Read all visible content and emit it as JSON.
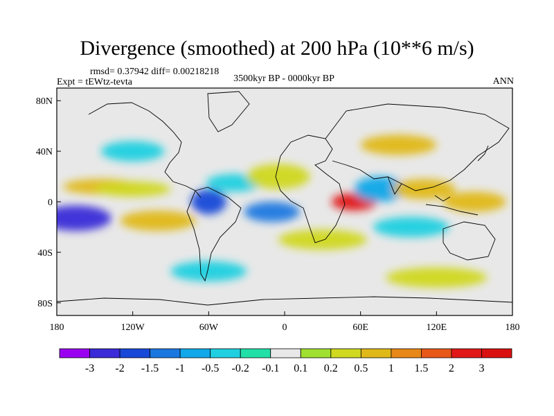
{
  "title": "Divergence (smoothed) at 200 hPa (10**6 m/s)",
  "stats": "rmsd= 0.37942 diff= 0.00218218",
  "experiment": "Expt = tEWtz-tevta",
  "period": "3500kyr BP - 0000kyr BP",
  "season": "ANN",
  "map": {
    "lon_range": [
      -180,
      180
    ],
    "lat_range": [
      -90,
      90
    ],
    "x_ticks": [
      {
        "lon": -180,
        "label": "180"
      },
      {
        "lon": -120,
        "label": "120W"
      },
      {
        "lon": -60,
        "label": "60W"
      },
      {
        "lon": 0,
        "label": "0"
      },
      {
        "lon": 60,
        "label": "60E"
      },
      {
        "lon": 120,
        "label": "120E"
      },
      {
        "lon": 180,
        "label": "180"
      }
    ],
    "y_ticks": [
      {
        "lat": 80,
        "label": "80N"
      },
      {
        "lat": 40,
        "label": "40N"
      },
      {
        "lat": 0,
        "label": "0"
      },
      {
        "lat": -40,
        "label": "40S"
      },
      {
        "lat": -80,
        "label": "80S"
      }
    ],
    "background_color": "#e8e8e8",
    "anomalies": [
      {
        "lon": -165,
        "lat": -13,
        "rx": 28,
        "ry": 10,
        "value": -2.5
      },
      {
        "lon": -145,
        "lat": 12,
        "rx": 30,
        "ry": 6,
        "value": 0.8
      },
      {
        "lon": -120,
        "lat": 10,
        "rx": 30,
        "ry": 6,
        "value": 0.3
      },
      {
        "lon": -100,
        "lat": -15,
        "rx": 30,
        "ry": 8,
        "value": 0.9
      },
      {
        "lon": -60,
        "lat": 0,
        "rx": 14,
        "ry": 10,
        "value": -1.8
      },
      {
        "lon": -40,
        "lat": 15,
        "rx": 22,
        "ry": 7,
        "value": -0.4
      },
      {
        "lon": -10,
        "lat": -8,
        "rx": 22,
        "ry": 8,
        "value": -1.3
      },
      {
        "lon": -5,
        "lat": 20,
        "rx": 25,
        "ry": 10,
        "value": 0.4
      },
      {
        "lon": 55,
        "lat": 0,
        "rx": 18,
        "ry": 7,
        "value": 2.6
      },
      {
        "lon": 75,
        "lat": 10,
        "rx": 20,
        "ry": 10,
        "value": -0.9
      },
      {
        "lon": 110,
        "lat": 10,
        "rx": 25,
        "ry": 8,
        "value": 0.6
      },
      {
        "lon": 150,
        "lat": 0,
        "rx": 25,
        "ry": 8,
        "value": 0.8
      },
      {
        "lon": 100,
        "lat": -20,
        "rx": 30,
        "ry": 8,
        "value": -0.4
      },
      {
        "lon": 30,
        "lat": -30,
        "rx": 35,
        "ry": 8,
        "value": 0.3
      },
      {
        "lon": -120,
        "lat": 40,
        "rx": 25,
        "ry": 8,
        "value": -0.3
      },
      {
        "lon": 90,
        "lat": 45,
        "rx": 30,
        "ry": 8,
        "value": 0.5
      },
      {
        "lon": -60,
        "lat": -55,
        "rx": 30,
        "ry": 8,
        "value": -0.3
      },
      {
        "lon": 120,
        "lat": -60,
        "rx": 40,
        "ry": 8,
        "value": 0.4
      }
    ]
  },
  "colorbar": {
    "levels": [
      "-3",
      "-2",
      "-1.5",
      "-1",
      "-0.5",
      "-0.2",
      "-0.1",
      "0.1",
      "0.2",
      "0.5",
      "1",
      "1.5",
      "2",
      "3"
    ],
    "colors": [
      "#9a00f0",
      "#3a2ad8",
      "#1848d8",
      "#1a78e0",
      "#10a8e8",
      "#20d0e0",
      "#20e0a8",
      "#e8e8e8",
      "#a0e030",
      "#d0d820",
      "#e0b818",
      "#e88818",
      "#e85818",
      "#e01818",
      "#d81010"
    ]
  }
}
